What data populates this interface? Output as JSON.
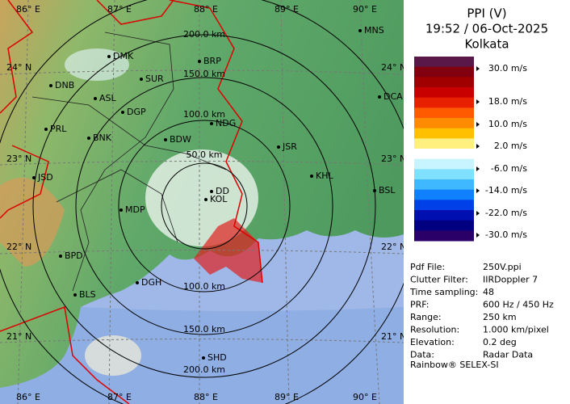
{
  "header": {
    "title": "PPI (V)",
    "time": "19:52 / 06-Oct-2025",
    "site": "Kolkata"
  },
  "map": {
    "longitudes": [
      "86° E",
      "87° E",
      "88° E",
      "89° E",
      "90° E"
    ],
    "latitudes": [
      "24° N",
      "23° N",
      "22° N",
      "21° N"
    ],
    "range_labels": [
      "200.0 km",
      "150.0 km",
      "100.0 km",
      "50.0 km",
      "100.0 km",
      "150.0 km",
      "200.0 km"
    ],
    "cities": [
      "DMK",
      "BRP",
      "SUR",
      "DNB",
      "ASL",
      "DGP",
      "MNS",
      "DCA",
      "PRL",
      "BNK",
      "BDW",
      "NDG",
      "JSR",
      "KHL",
      "JSD",
      "BSL",
      "MDP",
      "DD",
      "KOL",
      "DGH",
      "BPD",
      "BLS",
      "SHD"
    ]
  },
  "scale": {
    "labels": [
      "30.0 m/s",
      "18.0 m/s",
      "10.0 m/s",
      "2.0 m/s",
      "-6.0 m/s",
      "-14.0 m/s",
      "-22.0 m/s",
      "-30.0 m/s"
    ]
  },
  "info": {
    "rows": [
      [
        "Pdf File:",
        "250V.ppi"
      ],
      [
        "Clutter Filter:",
        "IIRDoppler 7"
      ],
      [
        "Time sampling:",
        "48"
      ],
      [
        "PRF:",
        "600 Hz / 450 Hz"
      ],
      [
        "Range:",
        "250 km"
      ],
      [
        "Resolution:",
        "1.000 km/pixel"
      ],
      [
        "Elevation:",
        "0.2 deg"
      ],
      [
        "Data:",
        "Radar Data"
      ]
    ]
  },
  "footer": "Rainbow® SELEX-SI"
}
